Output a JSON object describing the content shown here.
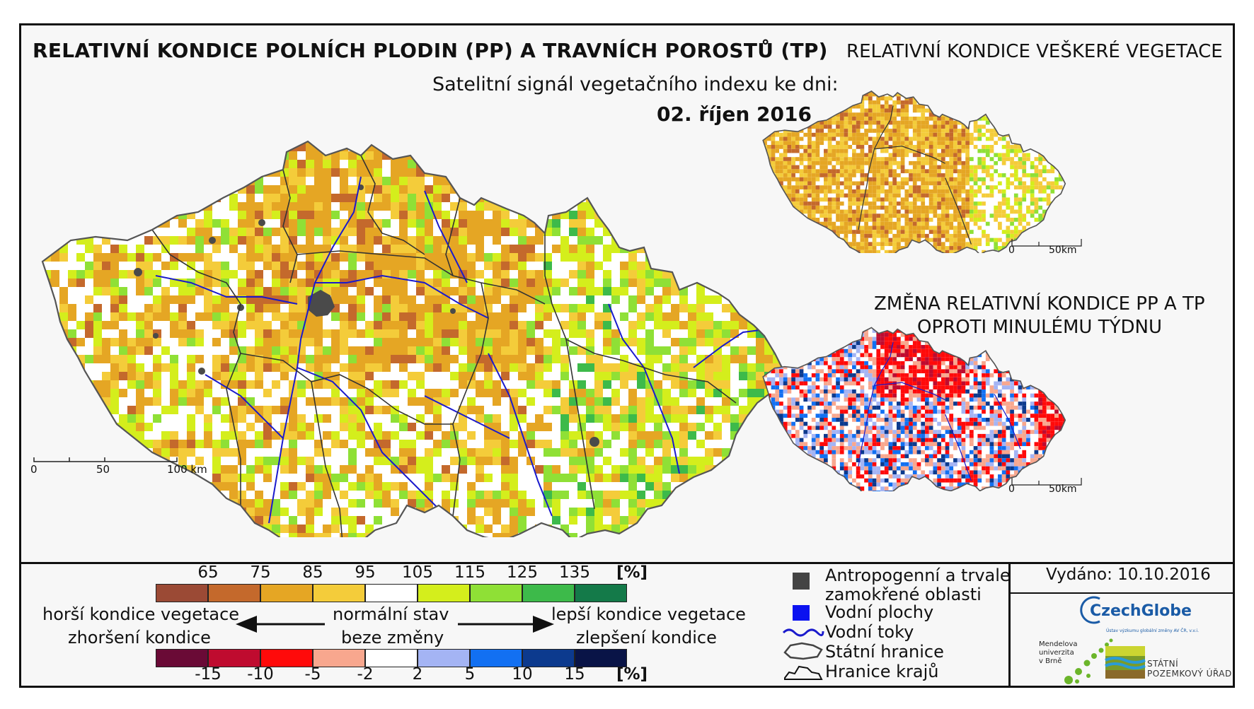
{
  "title": "RELATIVNÍ KONDICE POLNÍCH PLODIN (PP) A TRAVNÍCH POROSTŮ (TP)",
  "subtitle": "Satelitní signál vegetačního indexu ke dni:",
  "date": "02. říjen 2016",
  "title_right": "RELATIVNÍ KONDICE VEŠKERÉ VEGETACE",
  "title_change_line1": "ZMĚNA RELATIVNÍ KONDICE PP A TP",
  "title_change_line2": "OPROTI MINULÉMU TÝDNU",
  "scale_main": {
    "labels": [
      "0",
      "50",
      "100 km"
    ]
  },
  "scale_small": {
    "labels": [
      "0",
      "50km"
    ]
  },
  "legend_condition": {
    "ticks": [
      "65",
      "75",
      "85",
      "95",
      "105",
      "115",
      "125",
      "135"
    ],
    "unit": "[%]",
    "colors": [
      "#9b4a35",
      "#c4692c",
      "#e5a624",
      "#f4cc3a",
      "#ffffff",
      "#d4ee1c",
      "#8fe036",
      "#3dba4a",
      "#147a49"
    ]
  },
  "legend_change": {
    "ticks": [
      "-15",
      "-10",
      "-5",
      "-2",
      "2",
      "5",
      "10",
      "15"
    ],
    "unit": "[%]",
    "colors": [
      "#6a0a36",
      "#bf0b2f",
      "#ff0a0a",
      "#f8a78e",
      "#ffffff",
      "#a4b4f4",
      "#1270f2",
      "#0c3a8e",
      "#091447"
    ]
  },
  "legend_text": {
    "worse_1": "horší kondice vegetace",
    "worse_2": "zhoršení kondice",
    "normal_1": "normální stav",
    "normal_2": "beze změny",
    "better_1": "lepší kondice vegetace",
    "better_2": "zlepšení kondice"
  },
  "symbols": {
    "anthropogenic_1": "Antropogenní a trvale",
    "anthropogenic_2": "zamokřené oblasti",
    "water_bodies": "Vodní plochy",
    "water_streams": "Vodní toky",
    "state_border": "Státní hranice",
    "region_border": "Hranice krajů",
    "colors": {
      "anthropogenic": "#444444",
      "water": "#0b12f0",
      "streams": "#1a1acc"
    }
  },
  "issued": "Vydáno: 10.10.2016",
  "logos": {
    "czechglobe": "CzechGlobe",
    "czechglobe_sub": "Ústav výzkumu globální změny AV ČR, v.v.i.",
    "mendel": "Mendelova\nuniverzita\nv Brně",
    "spu": "STÁTNÍ\nPOZEMKOVÝ ÚŘAD"
  }
}
